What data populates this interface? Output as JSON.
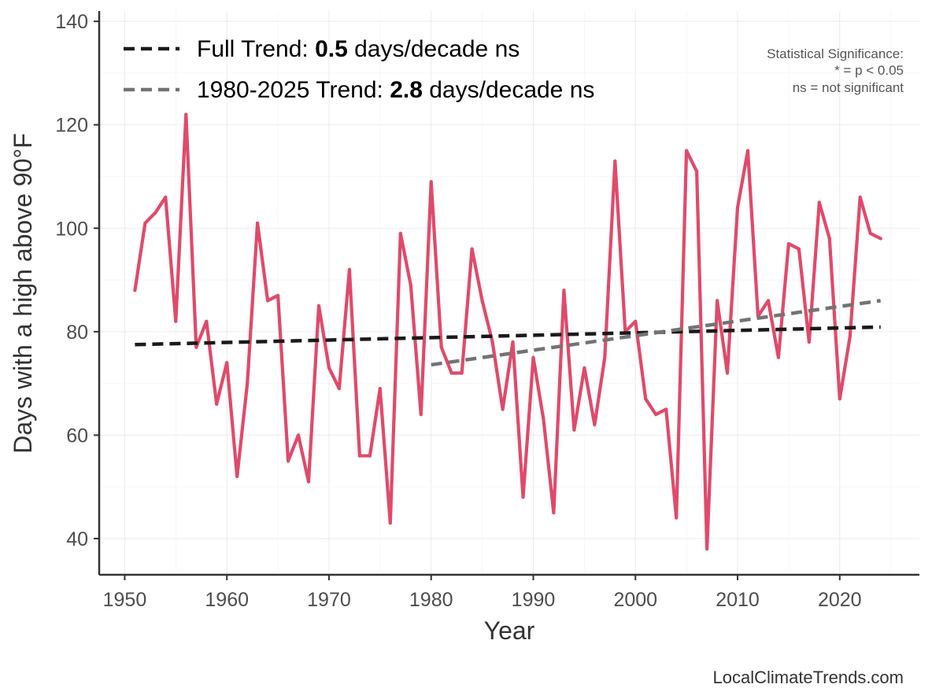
{
  "chart_data": {
    "type": "line",
    "xlabel": "Year",
    "ylabel": "Days with a high above 90°F",
    "xlim": [
      1947.5,
      2027.8
    ],
    "ylim": [
      33,
      142
    ],
    "x_ticks": [
      1950,
      1960,
      1970,
      1980,
      1990,
      2000,
      2010,
      2020
    ],
    "y_ticks": [
      40,
      60,
      80,
      100,
      120,
      140
    ],
    "grid": true,
    "series": [
      {
        "name": "Days with a high above 90°F",
        "color": "#e04a6a",
        "x": [
          1951,
          1952,
          1953,
          1954,
          1955,
          1956,
          1957,
          1958,
          1959,
          1960,
          1961,
          1962,
          1963,
          1964,
          1965,
          1966,
          1967,
          1968,
          1969,
          1970,
          1971,
          1972,
          1973,
          1974,
          1975,
          1976,
          1977,
          1978,
          1979,
          1980,
          1981,
          1982,
          1983,
          1984,
          1985,
          1986,
          1987,
          1988,
          1989,
          1990,
          1991,
          1992,
          1993,
          1994,
          1995,
          1996,
          1997,
          1998,
          1999,
          2000,
          2001,
          2002,
          2003,
          2004,
          2005,
          2006,
          2007,
          2008,
          2009,
          2010,
          2011,
          2012,
          2013,
          2014,
          2015,
          2016,
          2017,
          2018,
          2019,
          2020,
          2021,
          2022,
          2023,
          2024
        ],
        "values": [
          88,
          101,
          103,
          106,
          82,
          122,
          77,
          82,
          66,
          74,
          52,
          70,
          101,
          86,
          87,
          55,
          60,
          51,
          85,
          73,
          69,
          92,
          56,
          56,
          69,
          43,
          99,
          89,
          64,
          109,
          77,
          72,
          72,
          96,
          86,
          78,
          65,
          78,
          48,
          75,
          63,
          45,
          88,
          61,
          73,
          62,
          75,
          113,
          80,
          82,
          67,
          64,
          65,
          44,
          115,
          111,
          38,
          86,
          72,
          104,
          115,
          83,
          86,
          75,
          97,
          96,
          78,
          105,
          98,
          67,
          79,
          106,
          99,
          98
        ]
      }
    ],
    "trends": [
      {
        "name": "Full Trend",
        "label_prefix": "Full Trend: ",
        "rate": "0.5",
        "label_suffix": " days/decade ns",
        "color": "#1a1a1a",
        "x": [
          1951,
          2024
        ],
        "values": [
          77.5,
          80.9
        ]
      },
      {
        "name": "1980-2025 Trend",
        "label_prefix": "1980-2025 Trend: ",
        "rate": "2.8",
        "label_suffix": " days/decade ns",
        "color": "#737373",
        "x": [
          1980,
          2024
        ],
        "values": [
          73.6,
          86.0
        ]
      }
    ],
    "legend_position": "top-left",
    "annotation": [
      "Statistical Significance:",
      "* = p < 0.05",
      "ns = not significant"
    ]
  },
  "credit": "LocalClimateTrends.com"
}
